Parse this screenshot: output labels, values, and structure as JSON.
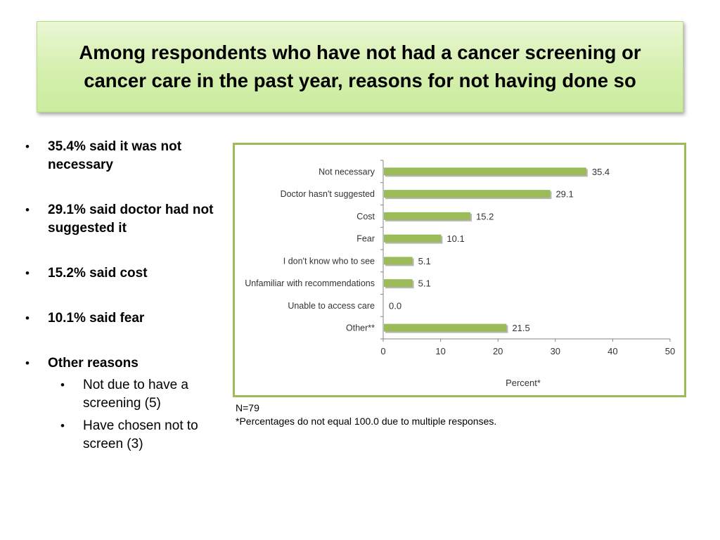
{
  "slide": {
    "title": "Among respondents who have not had a cancer screening or cancer care in the past year, reasons for not having done so"
  },
  "bullets": [
    {
      "text": "35.4% said it was not necessary"
    },
    {
      "text": "29.1% said doctor had not suggested it"
    },
    {
      "text": "15.2% said cost"
    },
    {
      "text": "10.1% said fear"
    },
    {
      "text": "Other reasons",
      "sub": [
        "Not due to have a screening (5)",
        "Have chosen not to screen (3)"
      ]
    }
  ],
  "bullet_glyph": "•",
  "notes": {
    "n": "N=79",
    "footnote": "*Percentages do not equal 100.0 due to multiple responses."
  },
  "chart_data": {
    "type": "bar",
    "orientation": "horizontal",
    "categories": [
      "Not necessary",
      "Doctor hasn't suggested",
      "Cost",
      "Fear",
      "I don't know who to see",
      "Unfamiliar with recommendations",
      "Unable to access care",
      "Other**"
    ],
    "values": [
      35.4,
      29.1,
      15.2,
      10.1,
      5.1,
      5.1,
      0.0,
      21.5
    ],
    "value_labels": [
      "35.4",
      "29.1",
      "15.2",
      "10.1",
      "5.1",
      "5.1",
      "0.0",
      "21.5"
    ],
    "xlabel": "Percent*",
    "xlim": [
      0,
      50
    ],
    "xticks": [
      0,
      10,
      20,
      30,
      40,
      50
    ],
    "grid": false,
    "bar_color": "#9bbb59",
    "frame_color": "#9bbb59"
  }
}
